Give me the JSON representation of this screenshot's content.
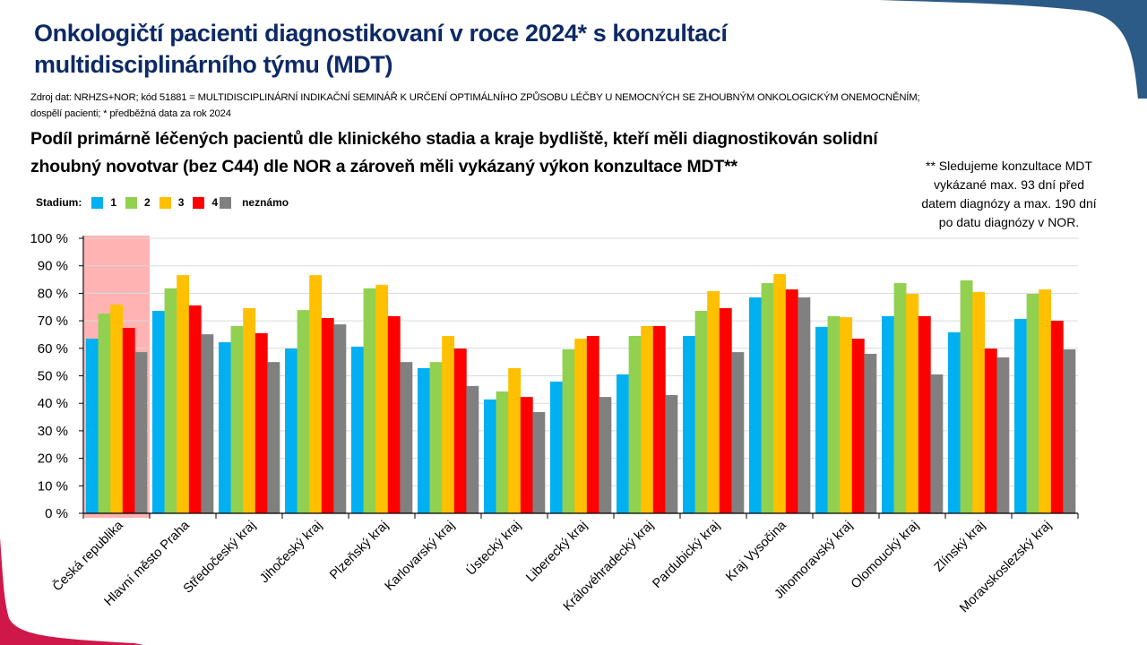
{
  "header": {
    "title_line1": "Onkologičtí pacienti diagnostikovaní v roce 2024* s konzultací",
    "title_line2": "multidisciplinárního týmu (MDT)",
    "source_line1": "Zdroj dat: NRHZS+NOR; kód 51881 = MULTIDISCIPLINÁRNÍ INDIKAČNÍ SEMINÁŘ K URČENÍ OPTIMÁLNÍHO ZPŮSOBU LÉČBY U NEMOCNÝCH SE ZHOUBNÝM ONKOLOGICKÝM ONEMOCNĚNÍM;",
    "source_line2": "dospělí pacienti; * předběžná data za rok 2024"
  },
  "note": {
    "line1": "** Sledujeme konzultace MDT",
    "line2": "vykázané max. 93 dní před",
    "line3": "datem diagnózy a max. 190 dní",
    "line4": "po datu diagnózy v NOR."
  },
  "colors": {
    "title": "#0d2a66",
    "highlight": "#ffb3b3",
    "corner_top": "#2d5b87",
    "corner_bottom": "#d0174a",
    "grid": "#d9d9d9"
  },
  "chart_data": {
    "type": "bar",
    "title_line1": "Podíl primárně léčených pacientů dle klinického stadia a kraje bydliště, kteří měli diagnostikován solidní",
    "title_line2": "zhoubný novotvar (bez C44) dle NOR a zároveň měli vykázaný výkon konzultace MDT**",
    "xlabel": "",
    "ylabel": "",
    "ylim": [
      0,
      100
    ],
    "yticks": [
      "0 %",
      "10 %",
      "20 %",
      "30 %",
      "40 %",
      "50 %",
      "60 %",
      "70 %",
      "80 %",
      "90 %",
      "100 %"
    ],
    "grid": true,
    "legend_title": "Stadium:",
    "legend_position": "top-left",
    "highlighted_category": "Česká republika",
    "categories": [
      "Česká republika",
      "Hlavní město Praha",
      "Středočeský kraj",
      "Jihočeský kraj",
      "Plzeňský kraj",
      "Karlovarský kraj",
      "Ústecký kraj",
      "Liberecký kraj",
      "Královéhradecký kraj",
      "Pardubický kraj",
      "Kraj Vysočina",
      "Jihomoravský kraj",
      "Olomoucký kraj",
      "Zlínský kraj",
      "Moravskoslezský kraj"
    ],
    "series": [
      {
        "name": "1",
        "color": "#00b0f0",
        "values": [
          63.5,
          73.6,
          62.2,
          59.9,
          60.6,
          52.8,
          41.4,
          47.9,
          50.5,
          64.5,
          78.5,
          67.8,
          71.7,
          65.8,
          70.7
        ]
      },
      {
        "name": "2",
        "color": "#92d050",
        "values": [
          72.6,
          81.8,
          68.1,
          73.9,
          81.8,
          55.0,
          44.3,
          59.6,
          64.5,
          73.6,
          83.7,
          71.7,
          83.7,
          84.7,
          79.8
        ]
      },
      {
        "name": "3",
        "color": "#ffc000",
        "values": [
          75.9,
          86.6,
          74.6,
          86.6,
          83.1,
          64.5,
          52.8,
          63.5,
          68.1,
          80.8,
          87.0,
          71.3,
          79.8,
          80.5,
          81.4
        ]
      },
      {
        "name": "4",
        "color": "#ff0000",
        "values": [
          67.4,
          75.6,
          65.5,
          71.0,
          71.7,
          59.9,
          42.3,
          64.5,
          68.1,
          74.6,
          81.4,
          63.5,
          71.7,
          59.9,
          70.0
        ]
      },
      {
        "name": "neznámo",
        "color": "#808080",
        "values": [
          58.6,
          65.1,
          55.0,
          68.7,
          55.0,
          46.3,
          36.8,
          42.3,
          43.0,
          58.6,
          78.5,
          58.0,
          50.5,
          56.7,
          59.6
        ]
      }
    ]
  }
}
